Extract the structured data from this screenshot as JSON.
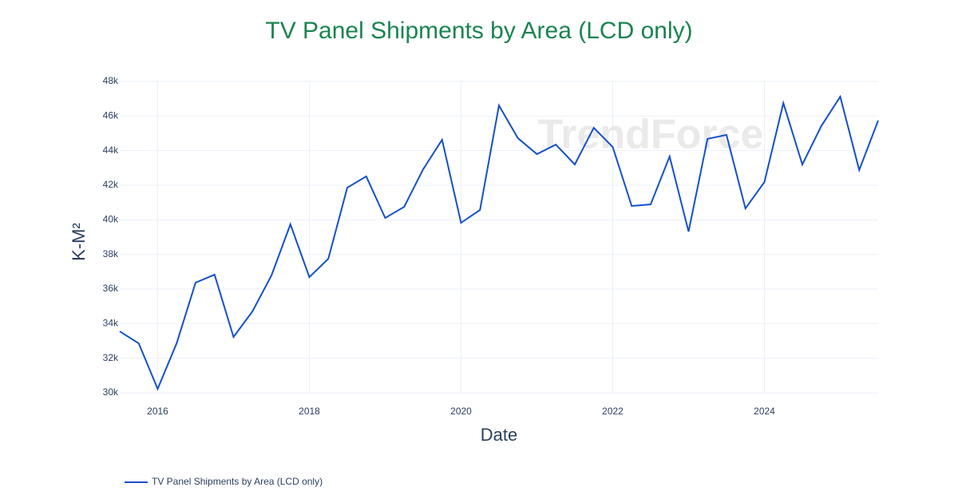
{
  "chart_data": {
    "type": "line",
    "title": "TV Panel Shipments by Area (LCD only)",
    "x_label": "Date",
    "y_label": "K-M²",
    "watermark": "TrendForce",
    "x": [
      2015.5,
      2015.75,
      2016,
      2016.25,
      2016.5,
      2016.75,
      2017,
      2017.25,
      2017.5,
      2017.75,
      2018,
      2018.25,
      2018.5,
      2018.75,
      2019,
      2019.25,
      2019.5,
      2019.75,
      2020,
      2020.25,
      2020.5,
      2020.75,
      2021,
      2021.25,
      2021.5,
      2021.75,
      2022,
      2022.25,
      2022.5,
      2022.75,
      2023,
      2023.25,
      2023.5,
      2023.75,
      2024,
      2024.25,
      2024.5,
      2024.75,
      2025,
      2025.25,
      2025.5
    ],
    "series": [
      {
        "name": "TV Panel Shipments by Area (LCD only)",
        "color": "#1450c8",
        "values": [
          33550,
          32860,
          30230,
          32860,
          36370,
          36830,
          33230,
          34710,
          36780,
          39740,
          36690,
          37750,
          41860,
          42510,
          40110,
          40750,
          42920,
          44630,
          39830,
          40570,
          46610,
          44720,
          43800,
          44350,
          43200,
          45320,
          44210,
          40800,
          40890,
          43660,
          39320,
          44680,
          44910,
          40660,
          42180,
          46750,
          43200,
          45420,
          47120,
          42880,
          45740
        ]
      }
    ],
    "xlim": [
      2015.5,
      2025.5
    ],
    "xticks": [
      2016,
      2018,
      2020,
      2022,
      2024
    ],
    "ylim": [
      30000,
      48000
    ],
    "yticks": [
      {
        "value": 30000,
        "label": "30k"
      },
      {
        "value": 32000,
        "label": "32k"
      },
      {
        "value": 34000,
        "label": "34k"
      },
      {
        "value": 36000,
        "label": "36k"
      },
      {
        "value": 38000,
        "label": "38k"
      },
      {
        "value": 40000,
        "label": "40k"
      },
      {
        "value": 42000,
        "label": "42k"
      },
      {
        "value": 44000,
        "label": "44k"
      },
      {
        "value": 46000,
        "label": "46k"
      },
      {
        "value": 48000,
        "label": "48k"
      }
    ],
    "grid": true,
    "title_color": "#1a8450"
  }
}
